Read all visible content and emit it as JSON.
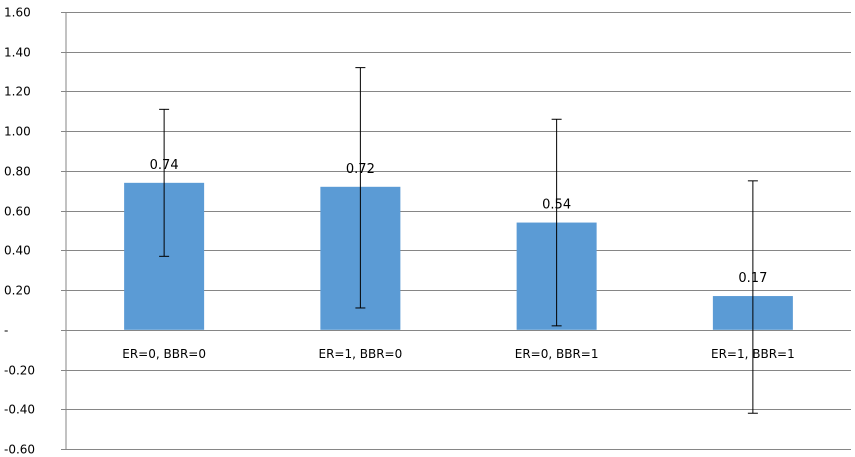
{
  "chart_data": {
    "type": "bar",
    "categories": [
      "ER=0, BBR=0",
      "ER=1, BBR=0",
      "ER=0, BBR=1",
      "ER=1, BBR=1"
    ],
    "values": [
      0.74,
      0.72,
      0.54,
      0.17
    ],
    "data_labels": [
      "0.74",
      "0.72",
      "0.54",
      "0.17"
    ],
    "error_bars": [
      {
        "low": 0.37,
        "high": 1.11
      },
      {
        "low": 0.11,
        "high": 1.32
      },
      {
        "low": 0.02,
        "high": 1.06
      },
      {
        "low": -0.42,
        "high": 0.75
      }
    ],
    "ylim": [
      -0.6,
      1.6
    ],
    "y_ticks": [
      1.6,
      1.4,
      1.2,
      1.0,
      0.8,
      0.6,
      0.4,
      0.2,
      0,
      -0.2,
      -0.4,
      -0.6
    ],
    "y_tick_labels": [
      "1.60",
      "1.40",
      "1.20",
      "1.00",
      "0.80",
      "0.60",
      "0.40",
      "0.20",
      "-",
      "-0.20",
      "-0.40",
      "-0.60"
    ],
    "grid": true,
    "legend": "none",
    "title": "",
    "xlabel": "",
    "ylabel": "",
    "bar_color": "#5b9bd5",
    "grid_color": "#868686",
    "error_bar_color": "#000000"
  }
}
